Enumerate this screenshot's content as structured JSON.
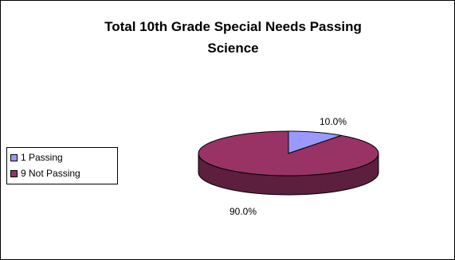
{
  "chart_data": {
    "type": "pie",
    "title": "Total 10th Grade Special Needs Passing Science",
    "title_lines": [
      "Total 10th Grade Special Needs Passing",
      "Science"
    ],
    "style": "3d",
    "legend_position": "left",
    "slices": [
      {
        "label": "1 Passing",
        "value": 10.0,
        "data_label": "10.0%",
        "color": "#9999ff",
        "side_color": "#5c5c99"
      },
      {
        "label": "9 Not Passing",
        "value": 90.0,
        "data_label": "90.0%",
        "color": "#993366",
        "side_color": "#5c1f3d"
      }
    ]
  }
}
